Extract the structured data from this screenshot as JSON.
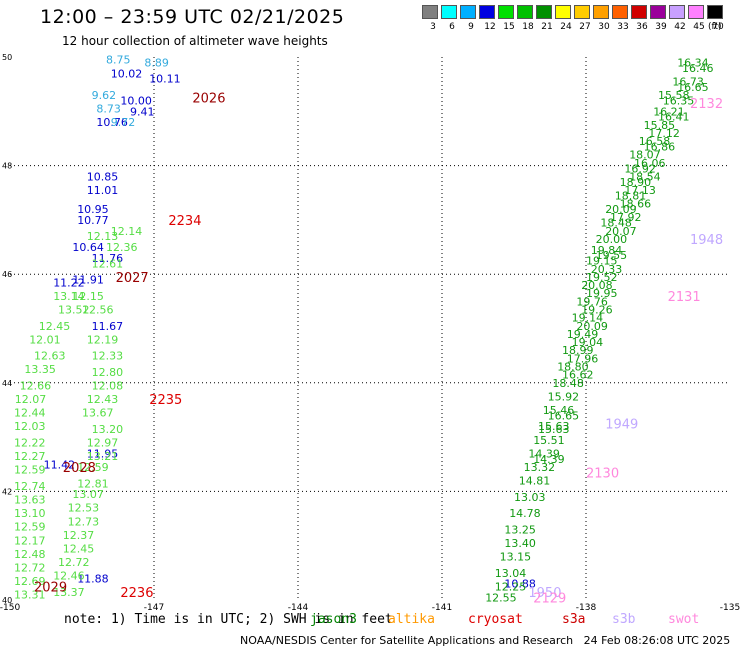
{
  "header": {
    "title": "12:00 – 23:59 UTC 02/21/2025",
    "subtitle": "12 hour collection of altimeter wave heights"
  },
  "colorbar": {
    "colors": [
      "#808080",
      "#00ffff",
      "#00b0ff",
      "#0000e0",
      "#00e000",
      "#00c000",
      "#009000",
      "#ffff00",
      "#ffcc00",
      "#ffa000",
      "#ff6000",
      "#d00000",
      "#9a009a",
      "#c8a0ff",
      "#ff80ff",
      "#000000"
    ],
    "labels": [
      "3",
      "6",
      "9",
      "12",
      "15",
      "18",
      "21",
      "24",
      "27",
      "30",
      "33",
      "36",
      "39",
      "42",
      "45",
      "70"
    ],
    "unit": "(ft)"
  },
  "footer": {
    "note": "note: 1) Time is in UTC; 2) SWH is in feet",
    "satellites": [
      {
        "name": "jason3",
        "color": "#008000"
      },
      {
        "name": "altika",
        "color": "#ff9900"
      },
      {
        "name": "cryosat",
        "color": "#dd0000"
      },
      {
        "name": "s3a",
        "color": "#cc0000"
      },
      {
        "name": "s3b",
        "color": "#c0a8ff"
      },
      {
        "name": "swot",
        "color": "#ff88dd"
      }
    ],
    "credit": "NOAA/NESDIS Center for Satellite Applications and Research",
    "timestamp": "24 Feb 08:26:08 UTC 2025"
  },
  "chart_data": {
    "type": "scatter",
    "title": "12:00 – 23:59 UTC 02/21/2025",
    "xlim": [
      -150,
      -135
    ],
    "ylim": [
      40,
      50
    ],
    "x_ticks": [
      -150,
      -147,
      -144,
      -141,
      -138,
      -135
    ],
    "y_ticks": [
      40,
      42,
      44,
      46,
      48,
      50
    ],
    "x_tick_labels": [
      "-150",
      "-147",
      "-144",
      "-141",
      "-138",
      "-135"
    ],
    "y_tick_labels": [
      "40",
      "42",
      "44",
      "46",
      "48",
      "50"
    ],
    "grid": true,
    "series": [
      {
        "color": "#0000cc",
        "points": [
          {
            "x": -147.9,
            "y": 49.7,
            "label": "10.02"
          },
          {
            "x": -147.1,
            "y": 49.6,
            "label": "10.11"
          },
          {
            "x": -147.7,
            "y": 49.2,
            "label": "10.00"
          },
          {
            "x": -147.5,
            "y": 49.0,
            "label": "9.41"
          },
          {
            "x": -148.2,
            "y": 48.8,
            "label": "10.76"
          },
          {
            "x": -148.4,
            "y": 47.8,
            "label": "10.85"
          },
          {
            "x": -148.4,
            "y": 47.55,
            "label": "11.01"
          },
          {
            "x": -148.6,
            "y": 47.2,
            "label": "10.95"
          },
          {
            "x": -148.6,
            "y": 47.0,
            "label": "10.77"
          },
          {
            "x": -148.7,
            "y": 46.5,
            "label": "10.64"
          },
          {
            "x": -148.3,
            "y": 46.3,
            "label": "11.76"
          },
          {
            "x": -149.1,
            "y": 45.85,
            "label": "11.22"
          },
          {
            "x": -148.7,
            "y": 45.9,
            "label": "11.91"
          },
          {
            "x": -148.3,
            "y": 45.05,
            "label": "11.67"
          },
          {
            "x": -149.3,
            "y": 42.5,
            "label": "11.42"
          },
          {
            "x": -148.4,
            "y": 42.7,
            "label": "11.95"
          },
          {
            "x": -148.6,
            "y": 40.4,
            "label": "11.88"
          },
          {
            "x": -139.7,
            "y": 40.3,
            "label": "10.88"
          }
        ]
      },
      {
        "color": "#33aadd",
        "points": [
          {
            "x": -148.0,
            "y": 49.95,
            "label": "8.75"
          },
          {
            "x": -147.2,
            "y": 49.9,
            "label": "8.89"
          },
          {
            "x": -148.3,
            "y": 49.3,
            "label": "9.62"
          },
          {
            "x": -148.2,
            "y": 49.05,
            "label": "8.73"
          },
          {
            "x": -147.9,
            "y": 48.8,
            "label": "9.72"
          }
        ]
      },
      {
        "color": "#55dd44",
        "points": [
          {
            "x": -148.4,
            "y": 46.7,
            "label": "12.13"
          },
          {
            "x": -148.3,
            "y": 46.2,
            "label": "12.61"
          },
          {
            "x": -149.1,
            "y": 45.6,
            "label": "13.14"
          },
          {
            "x": -148.7,
            "y": 45.6,
            "label": "12.15"
          },
          {
            "x": -149.0,
            "y": 45.35,
            "label": "13.52"
          },
          {
            "x": -148.5,
            "y": 45.35,
            "label": "12.56"
          },
          {
            "x": -149.4,
            "y": 45.05,
            "label": "12.45"
          },
          {
            "x": -148.4,
            "y": 44.8,
            "label": "12.19"
          },
          {
            "x": -149.6,
            "y": 44.8,
            "label": "12.01"
          },
          {
            "x": -148.3,
            "y": 44.5,
            "label": "12.33"
          },
          {
            "x": -149.5,
            "y": 44.5,
            "label": "12.63"
          },
          {
            "x": -148.3,
            "y": 44.2,
            "label": "12.80"
          },
          {
            "x": -149.7,
            "y": 44.25,
            "label": "13.35"
          },
          {
            "x": -148.3,
            "y": 43.95,
            "label": "12.08"
          },
          {
            "x": -149.8,
            "y": 43.95,
            "label": "12.66"
          },
          {
            "x": -148.4,
            "y": 43.7,
            "label": "12.43"
          },
          {
            "x": -149.9,
            "y": 43.7,
            "label": "12.07"
          },
          {
            "x": -148.5,
            "y": 43.45,
            "label": "13.67"
          },
          {
            "x": -150.1,
            "y": 43.45,
            "label": "12.44"
          },
          {
            "x": -148.3,
            "y": 43.15,
            "label": "13.20"
          },
          {
            "x": -150.2,
            "y": 43.2,
            "label": "12.03"
          },
          {
            "x": -148.4,
            "y": 42.9,
            "label": "12.97"
          },
          {
            "x": -150.3,
            "y": 42.9,
            "label": "12.22"
          },
          {
            "x": -148.4,
            "y": 42.65,
            "label": "13.21"
          },
          {
            "x": -150.4,
            "y": 42.65,
            "label": "12.27"
          },
          {
            "x": -150.5,
            "y": 42.4,
            "label": "12.59"
          },
          {
            "x": -148.6,
            "y": 42.45,
            "label": "12.59"
          },
          {
            "x": -148.6,
            "y": 42.15,
            "label": "12.81"
          },
          {
            "x": -150.6,
            "y": 42.1,
            "label": "12.74"
          },
          {
            "x": -148.7,
            "y": 41.95,
            "label": "13.07"
          },
          {
            "x": -150.7,
            "y": 41.85,
            "label": "13.63"
          },
          {
            "x": -148.8,
            "y": 41.7,
            "label": "12.53"
          },
          {
            "x": -150.7,
            "y": 41.6,
            "label": "13.10"
          },
          {
            "x": -148.8,
            "y": 41.45,
            "label": "12.73"
          },
          {
            "x": -150.8,
            "y": 41.35,
            "label": "12.59"
          },
          {
            "x": -148.9,
            "y": 41.2,
            "label": "12.37"
          },
          {
            "x": -150.9,
            "y": 41.1,
            "label": "12.17"
          },
          {
            "x": -148.9,
            "y": 40.95,
            "label": "12.45"
          },
          {
            "x": -151.0,
            "y": 40.85,
            "label": "12.48"
          },
          {
            "x": -149.0,
            "y": 40.7,
            "label": "12.72"
          },
          {
            "x": -151.0,
            "y": 40.6,
            "label": "12.72"
          },
          {
            "x": -149.1,
            "y": 40.45,
            "label": "12.46"
          },
          {
            "x": -151.1,
            "y": 40.35,
            "label": "12.69"
          },
          {
            "x": -149.1,
            "y": 40.15,
            "label": "13.37"
          },
          {
            "x": -151.1,
            "y": 40.1,
            "label": "13.31"
          },
          {
            "x": -147.9,
            "y": 46.8,
            "label": "12.14"
          },
          {
            "x": -148.0,
            "y": 46.5,
            "label": "12.36"
          }
        ]
      },
      {
        "color": "#119911",
        "points": [
          {
            "x": -136.1,
            "y": 49.9,
            "label": "16.34"
          },
          {
            "x": -136.0,
            "y": 49.8,
            "label": "16.46"
          },
          {
            "x": -136.2,
            "y": 49.55,
            "label": "16.73"
          },
          {
            "x": -136.1,
            "y": 49.45,
            "label": "16.65"
          },
          {
            "x": -136.5,
            "y": 49.3,
            "label": "15.58"
          },
          {
            "x": -136.4,
            "y": 49.2,
            "label": "16.35"
          },
          {
            "x": -136.6,
            "y": 49.0,
            "label": "16.21"
          },
          {
            "x": -136.5,
            "y": 48.9,
            "label": "16.41"
          },
          {
            "x": -136.8,
            "y": 48.75,
            "label": "15.85"
          },
          {
            "x": -136.7,
            "y": 48.6,
            "label": "17.12"
          },
          {
            "x": -136.9,
            "y": 48.45,
            "label": "16.58"
          },
          {
            "x": -136.8,
            "y": 48.35,
            "label": "16.86"
          },
          {
            "x": -137.1,
            "y": 48.2,
            "label": "18.07"
          },
          {
            "x": -137.0,
            "y": 48.05,
            "label": "16.06"
          },
          {
            "x": -137.2,
            "y": 47.95,
            "label": "16.92"
          },
          {
            "x": -137.1,
            "y": 47.8,
            "label": "18.54"
          },
          {
            "x": -137.3,
            "y": 47.7,
            "label": "18.90"
          },
          {
            "x": -137.2,
            "y": 47.55,
            "label": "17.13"
          },
          {
            "x": -137.4,
            "y": 47.45,
            "label": "18.81"
          },
          {
            "x": -137.3,
            "y": 47.3,
            "label": "18.66"
          },
          {
            "x": -137.6,
            "y": 47.2,
            "label": "20.09"
          },
          {
            "x": -137.5,
            "y": 47.05,
            "label": "17.92"
          },
          {
            "x": -137.7,
            "y": 46.95,
            "label": "18.48"
          },
          {
            "x": -137.6,
            "y": 46.8,
            "label": "20.07"
          },
          {
            "x": -137.8,
            "y": 46.65,
            "label": "20.00"
          },
          {
            "x": -137.9,
            "y": 46.45,
            "label": "19.84"
          },
          {
            "x": -137.8,
            "y": 46.35,
            "label": "19.55"
          },
          {
            "x": -138.0,
            "y": 46.25,
            "label": "19.15"
          },
          {
            "x": -137.9,
            "y": 46.1,
            "label": "20.33"
          },
          {
            "x": -138.0,
            "y": 45.95,
            "label": "19.52"
          },
          {
            "x": -138.1,
            "y": 45.8,
            "label": "20.08"
          },
          {
            "x": -138.0,
            "y": 45.65,
            "label": "19.95"
          },
          {
            "x": -138.2,
            "y": 45.5,
            "label": "19.76"
          },
          {
            "x": -138.1,
            "y": 45.35,
            "label": "19.26"
          },
          {
            "x": -138.3,
            "y": 45.2,
            "label": "19.14"
          },
          {
            "x": -138.2,
            "y": 45.05,
            "label": "20.09"
          },
          {
            "x": -138.4,
            "y": 44.9,
            "label": "19.49"
          },
          {
            "x": -138.3,
            "y": 44.75,
            "label": "19.04"
          },
          {
            "x": -138.5,
            "y": 44.6,
            "label": "18.99"
          },
          {
            "x": -138.4,
            "y": 44.45,
            "label": "17.96"
          },
          {
            "x": -138.6,
            "y": 44.3,
            "label": "18.80"
          },
          {
            "x": -138.5,
            "y": 44.15,
            "label": "16.62"
          },
          {
            "x": -138.7,
            "y": 44.0,
            "label": "18.48"
          },
          {
            "x": -138.8,
            "y": 43.75,
            "label": "15.92"
          },
          {
            "x": -138.9,
            "y": 43.5,
            "label": "15.46"
          },
          {
            "x": -138.8,
            "y": 43.4,
            "label": "16.65"
          },
          {
            "x": -139.0,
            "y": 43.15,
            "label": "15.63"
          },
          {
            "x": -139.1,
            "y": 42.95,
            "label": "15.51"
          },
          {
            "x": -139.2,
            "y": 42.7,
            "label": "14.39"
          },
          {
            "x": -139.1,
            "y": 42.6,
            "label": "14.39"
          },
          {
            "x": -139.3,
            "y": 42.45,
            "label": "13.32"
          },
          {
            "x": -139.4,
            "y": 42.2,
            "label": "14.81"
          },
          {
            "x": -139.5,
            "y": 41.9,
            "label": "13.03"
          },
          {
            "x": -139.6,
            "y": 41.6,
            "label": "14.78"
          },
          {
            "x": -139.7,
            "y": 41.3,
            "label": "13.25"
          },
          {
            "x": -139.7,
            "y": 41.05,
            "label": "13.40"
          },
          {
            "x": -139.8,
            "y": 40.8,
            "label": "13.15"
          },
          {
            "x": -139.9,
            "y": 40.5,
            "label": "13.04"
          },
          {
            "x": -139.9,
            "y": 40.25,
            "label": "12.25"
          },
          {
            "x": -140.1,
            "y": 40.05,
            "label": "12.55"
          },
          {
            "x": -139.0,
            "y": 43.2,
            "label": "15.63"
          }
        ]
      }
    ],
    "annotations": [
      {
        "text": "2026",
        "x": -146.2,
        "y": 49.25,
        "color": "#990000"
      },
      {
        "text": "2234",
        "x": -146.7,
        "y": 47.0,
        "color": "#dd0000"
      },
      {
        "text": "2027",
        "x": -147.8,
        "y": 45.95,
        "color": "#990000"
      },
      {
        "text": "2235",
        "x": -147.1,
        "y": 43.7,
        "color": "#dd0000"
      },
      {
        "text": "2028",
        "x": -148.9,
        "y": 42.45,
        "color": "#990000"
      },
      {
        "text": "2029",
        "x": -149.5,
        "y": 40.25,
        "color": "#990000"
      },
      {
        "text": "2236",
        "x": -147.7,
        "y": 40.15,
        "color": "#dd0000"
      },
      {
        "text": "2132",
        "x": -134.9,
        "y": 49.15,
        "color": "#ff88dd"
      },
      {
        "text": "1948",
        "x": -135.6,
        "y": 46.65,
        "color": "#c0a8ff"
      },
      {
        "text": "2131",
        "x": -136.3,
        "y": 45.6,
        "color": "#ff88dd"
      },
      {
        "text": "1949",
        "x": -137.6,
        "y": 43.25,
        "color": "#c0a8ff"
      },
      {
        "text": "2130",
        "x": -138.0,
        "y": 42.35,
        "color": "#ff88dd"
      },
      {
        "text": "1950",
        "x": -139.2,
        "y": 40.15,
        "color": "#c0a8ff"
      },
      {
        "text": "2129",
        "x": -139.1,
        "y": 40.05,
        "color": "#ff88dd"
      }
    ]
  }
}
